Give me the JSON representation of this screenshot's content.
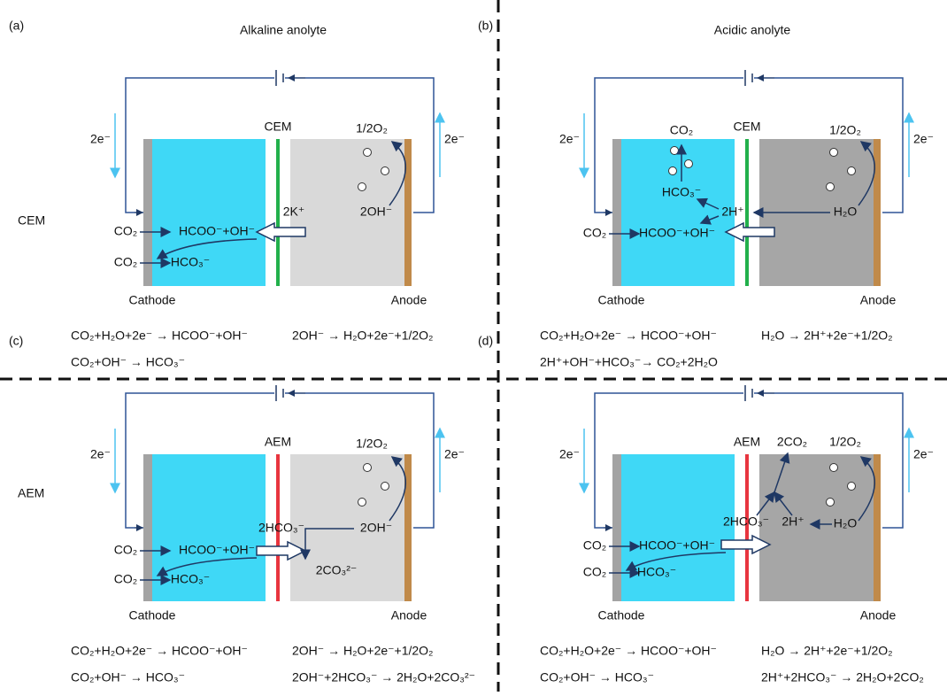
{
  "row_labels": [
    "CEM",
    "AEM"
  ],
  "panels": [
    {
      "label": "(a)",
      "title": "Alkaline anolyte",
      "membrane": "CEM",
      "electron_left": "2e⁻",
      "electron_right": "2e⁻",
      "cathode": "Cathode",
      "anode": "Anode",
      "species": [
        "1/2O₂",
        "2K⁺",
        "2OH⁻",
        "CO₂",
        "HCOO⁻+OH⁻",
        "CO₂",
        "HCO₃⁻"
      ],
      "equations": [
        "CO₂+H₂O+2e⁻ → HCOO⁻+OH⁻",
        "2OH⁻ → H₂O+2e⁻+1/2O₂",
        "CO₂+OH⁻ → HCO₃⁻"
      ]
    },
    {
      "label": "(b)",
      "title": "Acidic anolyte",
      "membrane": "CEM",
      "electron_left": "2e⁻",
      "electron_right": "2e⁻",
      "cathode": "Cathode",
      "anode": "Anode",
      "species": [
        "CO₂",
        "1/2O₂",
        "HCO₃⁻",
        "2H⁺",
        "H₂O",
        "CO₂",
        "HCOO⁻+OH⁻"
      ],
      "equations": [
        "CO₂+H₂O+2e⁻ → HCOO⁻+OH⁻",
        "H₂O → 2H⁺+2e⁻+1/2O₂",
        "2H⁺+OH⁻+HCO₃⁻→ CO₂+2H₂O"
      ]
    },
    {
      "label": "(c)",
      "membrane": "AEM",
      "electron_left": "2e⁻",
      "electron_right": "2e⁻",
      "cathode": "Cathode",
      "anode": "Anode",
      "species": [
        "1/2O₂",
        "2HCO₃⁻",
        "2OH⁻",
        "2CO₃²⁻",
        "CO₂",
        "HCOO⁻+OH⁻",
        "CO₂",
        "HCO₃⁻"
      ],
      "equations": [
        "CO₂+H₂O+2e⁻ → HCOO⁻+OH⁻",
        "2OH⁻ → H₂O+2e⁻+1/2O₂",
        "CO₂+OH⁻ → HCO₃⁻",
        "2OH⁻+2HCO₃⁻ → 2H₂O+2CO₃²⁻"
      ]
    },
    {
      "label": "(d)",
      "membrane": "AEM",
      "electron_left": "2e⁻",
      "electron_right": "2e⁻",
      "cathode": "Cathode",
      "anode": "Anode",
      "species": [
        "2CO₂",
        "1/2O₂",
        "2HCO₃⁻",
        "2H⁺",
        "H₂O",
        "CO₂",
        "HCOO⁻+OH⁻",
        "CO₂",
        "HCO₃⁻"
      ],
      "equations": [
        "CO₂+H₂O+2e⁻ → HCOO⁻+OH⁻",
        "H₂O → 2H⁺+2e⁻+1/2O₂",
        "CO₂+OH⁻ → HCO₃⁻",
        "2H⁺+2HCO₃⁻ → 2H₂O+2CO₂"
      ]
    }
  ]
}
